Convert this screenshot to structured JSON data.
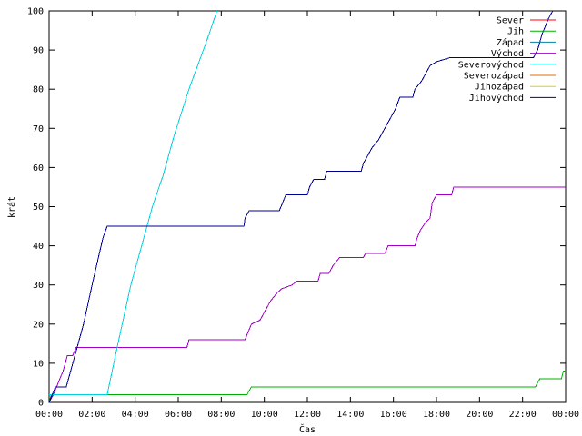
{
  "chart_data": {
    "type": "line",
    "title": "",
    "xlabel": "Čas",
    "ylabel": "krát",
    "xlim": [
      0,
      24
    ],
    "ylim": [
      0,
      100
    ],
    "xtick_labels": [
      "00:00",
      "02:00",
      "04:00",
      "06:00",
      "08:00",
      "10:00",
      "12:00",
      "14:00",
      "16:00",
      "18:00",
      "20:00",
      "22:00",
      "00:00"
    ],
    "ytick_labels": [
      "0",
      "10",
      "20",
      "30",
      "40",
      "50",
      "60",
      "70",
      "80",
      "90",
      "100"
    ],
    "grid": false,
    "legend_position": "top-right",
    "series": [
      {
        "name": "Sever",
        "color": "#ff0000",
        "points": []
      },
      {
        "name": "Jih",
        "color": "#00b000",
        "points": [
          [
            0,
            0
          ],
          [
            0.1,
            2
          ],
          [
            9.2,
            2
          ],
          [
            9.4,
            4
          ],
          [
            22.6,
            4
          ],
          [
            22.8,
            6
          ],
          [
            23.8,
            6
          ],
          [
            23.9,
            8
          ],
          [
            24,
            8
          ]
        ]
      },
      {
        "name": "Západ",
        "color": "#0080a0",
        "points": []
      },
      {
        "name": "Východ",
        "color": "#a000c8",
        "points": [
          [
            0,
            0
          ],
          [
            0.2,
            2
          ],
          [
            0.35,
            4
          ],
          [
            0.5,
            6
          ],
          [
            0.65,
            8
          ],
          [
            0.75,
            10
          ],
          [
            0.85,
            12
          ],
          [
            1.1,
            12
          ],
          [
            1.25,
            14
          ],
          [
            6.4,
            14
          ],
          [
            6.5,
            16
          ],
          [
            9.1,
            16
          ],
          [
            9.4,
            20
          ],
          [
            9.8,
            21
          ],
          [
            10.1,
            24
          ],
          [
            10.3,
            26
          ],
          [
            10.6,
            28
          ],
          [
            10.8,
            29
          ],
          [
            11.3,
            30
          ],
          [
            11.5,
            31
          ],
          [
            12.5,
            31
          ],
          [
            12.6,
            33
          ],
          [
            13,
            33
          ],
          [
            13.2,
            35
          ],
          [
            13.5,
            37
          ],
          [
            14.6,
            37
          ],
          [
            14.7,
            38
          ],
          [
            15.6,
            38
          ],
          [
            15.75,
            40
          ],
          [
            17,
            40
          ],
          [
            17.1,
            42
          ],
          [
            17.25,
            44
          ],
          [
            17.5,
            46
          ],
          [
            17.7,
            47
          ],
          [
            17.8,
            51
          ],
          [
            18,
            53
          ],
          [
            18.7,
            53
          ],
          [
            18.8,
            55
          ],
          [
            24,
            55
          ]
        ]
      },
      {
        "name": "Severovýchod",
        "color": "#00d0e0",
        "points": [
          [
            0,
            2
          ],
          [
            2.7,
            2
          ],
          [
            3.2,
            15
          ],
          [
            3.8,
            30
          ],
          [
            4.3,
            40
          ],
          [
            4.8,
            50
          ],
          [
            5.3,
            58
          ],
          [
            5.8,
            68
          ],
          [
            6.5,
            80
          ],
          [
            7.3,
            92
          ],
          [
            7.8,
            100
          ]
        ]
      },
      {
        "name": "Severozápad",
        "color": "#e07000",
        "points": []
      },
      {
        "name": "Jihozápad",
        "color": "#e0d000",
        "points": []
      },
      {
        "name": "Jihovýchod",
        "color": "#000090",
        "points": [
          [
            0,
            0
          ],
          [
            0.15,
            2
          ],
          [
            0.3,
            4
          ],
          [
            0.8,
            4
          ],
          [
            1,
            8
          ],
          [
            1.3,
            14
          ],
          [
            1.6,
            20
          ],
          [
            2,
            30
          ],
          [
            2.5,
            42
          ],
          [
            2.7,
            45
          ],
          [
            9.05,
            45
          ],
          [
            9.1,
            47
          ],
          [
            9.3,
            49
          ],
          [
            10.7,
            49
          ],
          [
            10.85,
            51
          ],
          [
            11,
            53
          ],
          [
            12,
            53
          ],
          [
            12.1,
            55
          ],
          [
            12.3,
            57
          ],
          [
            12.8,
            57
          ],
          [
            12.9,
            59
          ],
          [
            14.5,
            59
          ],
          [
            14.6,
            61
          ],
          [
            14.8,
            63
          ],
          [
            15,
            65
          ],
          [
            15.3,
            67
          ],
          [
            15.5,
            69
          ],
          [
            15.7,
            71
          ],
          [
            15.9,
            73
          ],
          [
            16.1,
            75
          ],
          [
            16.3,
            78
          ],
          [
            16.9,
            78
          ],
          [
            17,
            80
          ],
          [
            17.3,
            82
          ],
          [
            17.5,
            84
          ],
          [
            17.7,
            86
          ],
          [
            18,
            87
          ],
          [
            18.6,
            88
          ],
          [
            22.5,
            88
          ],
          [
            22.7,
            90
          ],
          [
            22.9,
            94
          ],
          [
            23.2,
            98
          ],
          [
            23.4,
            100
          ]
        ]
      }
    ]
  }
}
